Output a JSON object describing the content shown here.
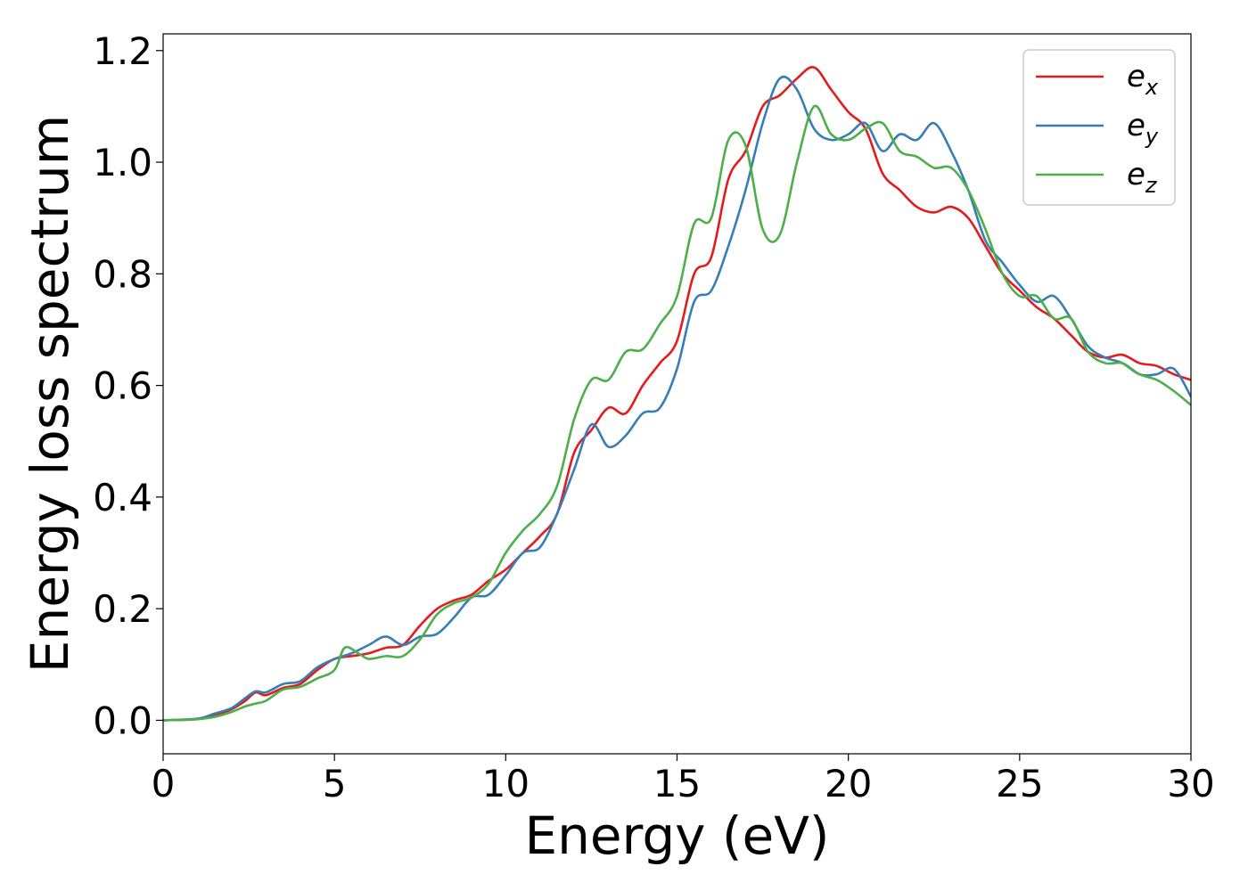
{
  "chart_data": {
    "type": "line",
    "title": "",
    "xlabel": "Energy (eV)",
    "ylabel": "Energy loss spectrum",
    "xlim": [
      0,
      30
    ],
    "ylim": [
      -0.06,
      1.23
    ],
    "xticks": [
      "0",
      "5",
      "10",
      "15",
      "20",
      "25",
      "30"
    ],
    "yticks": [
      "0.0",
      "0.2",
      "0.4",
      "0.6",
      "0.8",
      "1.0",
      "1.2"
    ],
    "grid": false,
    "legend": "top-right",
    "series": [
      {
        "name": "e_x",
        "label_main": "e",
        "label_sub": "x",
        "color": "#e41a1c",
        "x": [
          0,
          1,
          1.5,
          2,
          2.4,
          2.7,
          3,
          3.5,
          4,
          4.5,
          5,
          5.5,
          6,
          6.5,
          7,
          7.5,
          8,
          8.5,
          9,
          9.5,
          10,
          10.5,
          11,
          11.5,
          12,
          12.5,
          13,
          13.5,
          14,
          14.5,
          15,
          15.5,
          16,
          16.5,
          17,
          17.5,
          18,
          18.5,
          19,
          19.5,
          20,
          20.5,
          21,
          21.5,
          22,
          22.5,
          23,
          23.5,
          24,
          24.5,
          25,
          25.5,
          26,
          26.5,
          27,
          27.5,
          28,
          28.5,
          29,
          29.5,
          30
        ],
        "y": [
          0.0,
          0.002,
          0.008,
          0.02,
          0.035,
          0.05,
          0.045,
          0.058,
          0.065,
          0.09,
          0.11,
          0.115,
          0.12,
          0.13,
          0.135,
          0.17,
          0.2,
          0.215,
          0.225,
          0.25,
          0.27,
          0.3,
          0.33,
          0.37,
          0.48,
          0.52,
          0.56,
          0.55,
          0.6,
          0.64,
          0.68,
          0.8,
          0.83,
          0.97,
          1.02,
          1.1,
          1.12,
          1.15,
          1.17,
          1.13,
          1.09,
          1.06,
          0.98,
          0.95,
          0.92,
          0.91,
          0.92,
          0.9,
          0.85,
          0.8,
          0.77,
          0.74,
          0.72,
          0.69,
          0.66,
          0.65,
          0.655,
          0.64,
          0.635,
          0.62,
          0.61
        ]
      },
      {
        "name": "e_y",
        "label_main": "e",
        "label_sub": "y",
        "color": "#377eb8",
        "x": [
          0,
          1,
          1.5,
          2,
          2.4,
          2.7,
          3,
          3.5,
          4,
          4.5,
          5,
          5.5,
          6,
          6.5,
          7,
          7.5,
          8,
          8.5,
          9,
          9.5,
          10,
          10.5,
          11,
          11.5,
          12,
          12.5,
          13,
          13.5,
          14,
          14.5,
          15,
          15.5,
          16,
          16.5,
          17,
          17.5,
          18,
          18.5,
          19,
          19.5,
          20,
          20.5,
          21,
          21.5,
          22,
          22.5,
          23,
          23.5,
          24,
          24.5,
          25,
          25.5,
          26,
          26.5,
          27,
          27.5,
          28,
          28.5,
          29,
          29.5,
          30
        ],
        "y": [
          0.0,
          0.003,
          0.012,
          0.022,
          0.04,
          0.052,
          0.05,
          0.065,
          0.07,
          0.095,
          0.11,
          0.12,
          0.135,
          0.15,
          0.135,
          0.15,
          0.155,
          0.185,
          0.22,
          0.225,
          0.26,
          0.3,
          0.31,
          0.37,
          0.45,
          0.53,
          0.49,
          0.51,
          0.55,
          0.56,
          0.63,
          0.75,
          0.77,
          0.85,
          0.95,
          1.07,
          1.15,
          1.13,
          1.06,
          1.04,
          1.05,
          1.07,
          1.02,
          1.05,
          1.04,
          1.07,
          1.02,
          0.95,
          0.86,
          0.82,
          0.78,
          0.75,
          0.76,
          0.72,
          0.67,
          0.65,
          0.64,
          0.62,
          0.62,
          0.63,
          0.58
        ]
      },
      {
        "name": "e_z",
        "label_main": "e",
        "label_sub": "z",
        "color": "#4daf4a",
        "x": [
          0,
          1,
          1.5,
          2,
          2.4,
          2.7,
          3,
          3.5,
          4,
          4.5,
          5,
          5.3,
          5.7,
          6,
          6.5,
          7,
          7.5,
          8,
          8.5,
          9,
          9.5,
          10,
          10.5,
          11,
          11.5,
          12,
          12.5,
          13,
          13.5,
          14,
          14.5,
          15,
          15.5,
          16,
          16.5,
          17,
          17.5,
          18,
          18.5,
          19,
          19.5,
          20,
          20.5,
          21,
          21.5,
          22,
          22.5,
          23,
          23.5,
          24,
          24.5,
          25,
          25.5,
          26,
          26.5,
          27,
          27.5,
          28,
          28.5,
          29,
          29.5,
          30
        ],
        "y": [
          0.0,
          0.002,
          0.006,
          0.015,
          0.025,
          0.03,
          0.035,
          0.055,
          0.06,
          0.075,
          0.09,
          0.13,
          0.12,
          0.11,
          0.115,
          0.115,
          0.145,
          0.19,
          0.21,
          0.22,
          0.245,
          0.3,
          0.34,
          0.37,
          0.42,
          0.54,
          0.61,
          0.61,
          0.66,
          0.665,
          0.71,
          0.76,
          0.89,
          0.9,
          1.04,
          1.03,
          0.88,
          0.87,
          1.0,
          1.1,
          1.05,
          1.04,
          1.06,
          1.07,
          1.02,
          1.01,
          0.99,
          0.99,
          0.95,
          0.88,
          0.8,
          0.76,
          0.76,
          0.72,
          0.72,
          0.66,
          0.64,
          0.64,
          0.62,
          0.61,
          0.59,
          0.565
        ]
      }
    ]
  }
}
